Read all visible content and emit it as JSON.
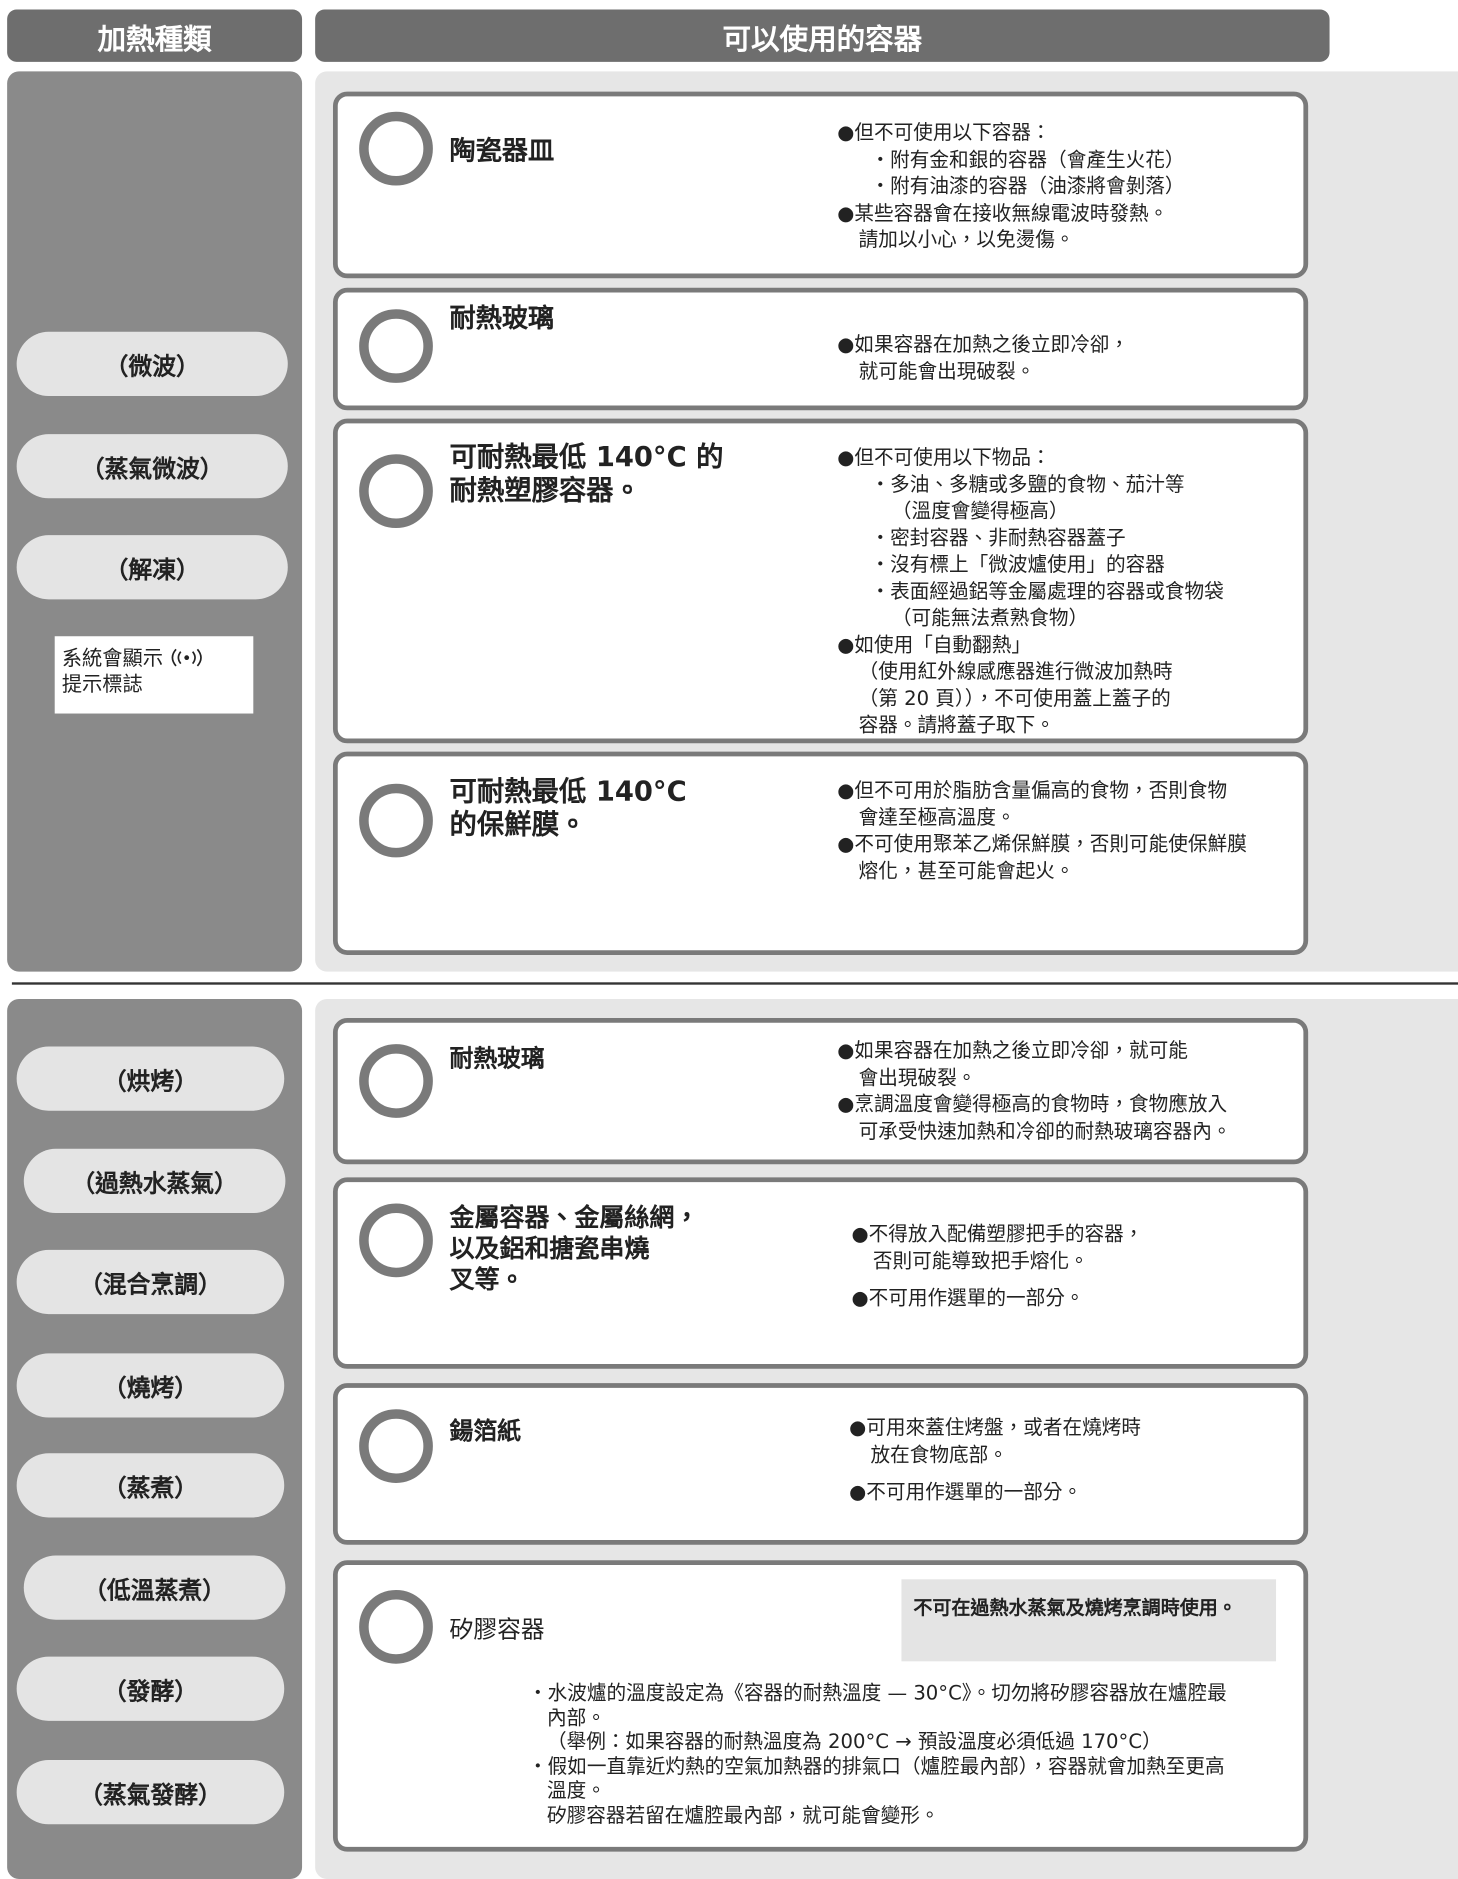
{
  "header": {
    "heating_type": "加熱種類",
    "containers": "可以使用的容器"
  },
  "microwave": {
    "modes": [
      "（微波）",
      "（蒸氣微波）",
      "（解凍）"
    ],
    "note": [
      "系統會顯示",
      "提示標誌"
    ],
    "cards": [
      {
        "title": [
          "陶瓷器皿"
        ],
        "paragraphs": [
          [
            "●但不可使用以下容器：",
            "・附有金和銀的容器（會產生火花）",
            "・附有油漆的容器（油漆將會剝落）",
            "●某些容器會在接收無線電波時發熱。",
            "請加以小心，以免燙傷。"
          ]
        ]
      },
      {
        "title": [
          "耐熱玻璃"
        ],
        "paragraphs": [
          [
            "●如果容器在加熱之後立即冷卻，",
            "就可能會出現破裂。"
          ]
        ]
      },
      {
        "title": [
          "可耐熱最低 140°C 的",
          "耐熱塑膠容器。"
        ],
        "paragraphs": [
          [
            "●但不可使用以下物品：",
            "・多油、多糖或多鹽的食物、茄汁等",
            "（溫度會變得極高）",
            "・密封容器、非耐熱容器蓋子",
            "・沒有標上「微波爐使用」的容器",
            "・表面經過鋁等金屬處理的容器或食物袋",
            "（可能無法煮熟食物）",
            "●如使用「自動翻熱」",
            "（使用紅外線感應器進行微波加熱時",
            "（第 20 頁）），不可使用蓋上蓋子的",
            "容器。請將蓋子取下。"
          ]
        ]
      },
      {
        "title": [
          "可耐熱最低 140°C",
          "的保鮮膜。"
        ],
        "paragraphs": [
          [
            "●但不可用於脂肪含量偏高的食物，否則食物",
            "會達至極高溫度。",
            "●不可使用聚苯乙烯保鮮膜，否則可能使保鮮膜",
            "熔化，甚至可能會起火。"
          ]
        ]
      }
    ]
  },
  "oven": {
    "modes": [
      "（烘烤）",
      "（過熱水蒸氣）",
      "（混合烹調）",
      "（燒烤）",
      "（蒸煮）",
      "（低溫蒸煮）",
      "（發酵）",
      "（蒸氣發酵）"
    ],
    "cards": [
      {
        "title": [
          "耐熱玻璃"
        ],
        "paragraphs": [
          [
            "●如果容器在加熱之後立即冷卻，就可能",
            "會出現破裂。",
            "●烹調溫度會變得極高的食物時，食物應放入",
            "可承受快速加熱和冷卻的耐熱玻璃容器內。"
          ]
        ]
      },
      {
        "title": [
          "金屬容器、金屬絲網，",
          "以及鋁和搪瓷串燒",
          "叉等。"
        ],
        "paragraphs": [
          [
            "●不得放入配備塑膠把手的容器，",
            "否則可能導致把手熔化。"
          ],
          [
            "●不可用作選單的一部分。"
          ]
        ]
      },
      {
        "title": [
          "鍚箔紙"
        ],
        "paragraphs": [
          [
            "●可用來蓋住烤盤，或者在燒烤時",
            "放在食物底部。"
          ],
          [
            "●不可用作選單的一部分。"
          ]
        ]
      },
      {
        "title": [
          "矽膠容器"
        ],
        "warning": "不可在過熱水蒸氣及燒烤烹調時使用。",
        "paragraphs": [
          [
            "・水波爐的溫度設定為《容器的耐熱溫度 — 30°C》。切勿將矽膠容器放在爐腔最",
            "內部。",
            "（舉例：如果容器的耐熱溫度為 200°C → 預設溫度必須低過 170°C）",
            "・假如一直靠近灼熱的空氣加熱器的排氣口（爐腔最內部），容器就會加熱至更高",
            "溫度。",
            "矽膠容器若留在爐腔最內部，就可能會變形。"
          ]
        ]
      }
    ]
  }
}
